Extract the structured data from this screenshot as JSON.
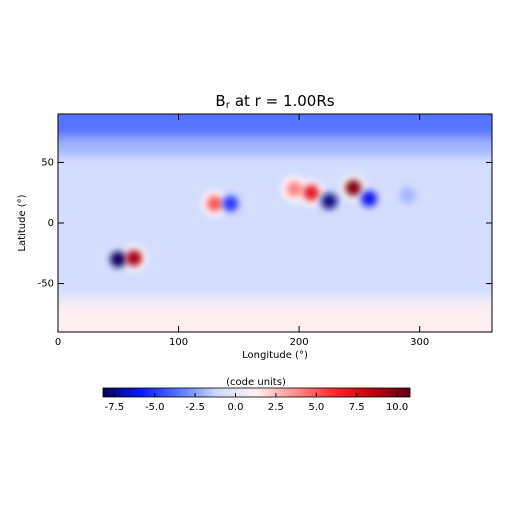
{
  "chart_data": {
    "type": "heatmap",
    "title": {
      "symbol": "B",
      "subscript": "r",
      "text": "at r = 1.00Rs"
    },
    "x_label": "Longitude (°)",
    "y_label": "Latitude (°)",
    "xlim": [
      0,
      360
    ],
    "ylim": [
      -90,
      90
    ],
    "xticks": [
      0,
      100,
      200,
      300
    ],
    "yticks": [
      -50,
      0,
      50
    ],
    "colorbar": {
      "label": "(code units)",
      "clim": [
        -8.2,
        10.8
      ],
      "ticks": [
        -7.5,
        {
          "value": -5,
          "label": "-5.0"
        },
        -2.5,
        {
          "value": 0,
          "label": "0.0"
        },
        2.5,
        {
          "value": 5,
          "label": "5.0"
        },
        7.5,
        {
          "value": 10,
          "label": "10.0"
        }
      ],
      "colors": [
        "#0a0050",
        "#0a1aff",
        "#5878ff",
        "#d0dcff",
        "#fff0f0",
        "#ff9090",
        "#ff2a2a",
        "#c00010",
        "#600010"
      ]
    },
    "bands": [
      {
        "lat_top": 90,
        "lat_bottom": 70,
        "value": -3.5
      },
      {
        "lat_top": 70,
        "lat_bottom": 55,
        "value": -2
      },
      {
        "lat_top": 55,
        "lat_bottom": -60,
        "value": -0.9
      },
      {
        "lat_top": -60,
        "lat_bottom": -68,
        "value": 0.3
      },
      {
        "lat_top": -68,
        "lat_bottom": -90,
        "value": 1.2
      }
    ],
    "sources": [
      {
        "lon": 50,
        "lat": -30,
        "value": -8
      },
      {
        "lon": 63,
        "lat": -29,
        "value": 9
      },
      {
        "lon": 130,
        "lat": 16,
        "value": 5
      },
      {
        "lon": 143,
        "lat": 16,
        "value": -5
      },
      {
        "lon": 196,
        "lat": 28,
        "value": 4
      },
      {
        "lon": 210,
        "lat": 25,
        "value": 7
      },
      {
        "lon": 225,
        "lat": 18,
        "value": -7.5
      },
      {
        "lon": 245,
        "lat": 29,
        "value": 10
      },
      {
        "lon": 258,
        "lat": 20,
        "value": -6
      },
      {
        "lon": 290,
        "lat": 23,
        "value": -2
      }
    ]
  }
}
